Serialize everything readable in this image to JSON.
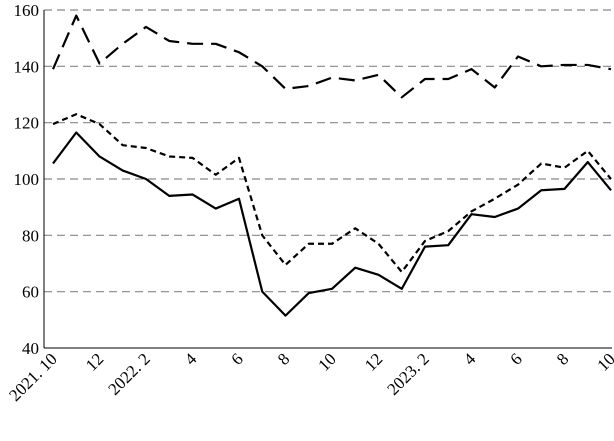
{
  "chart_data": {
    "type": "line",
    "categories": [
      "2021. 10",
      null,
      "12",
      null,
      "2022. 2",
      null,
      "4",
      null,
      "6",
      null,
      "8",
      null,
      "10",
      null,
      "12",
      null,
      "2023. 2",
      null,
      "4",
      null,
      "6",
      null,
      "8",
      null,
      "10"
    ],
    "series": [
      {
        "color": "#000000",
        "line_style": "dashed",
        "values": [
          139,
          158,
          141,
          148,
          154,
          149,
          148,
          148,
          145,
          140,
          132,
          133,
          136,
          135,
          137,
          129,
          135.5,
          135.5,
          139,
          132.5,
          143.5,
          140,
          140.5,
          140.5,
          139
        ]
      },
      {
        "color": "#000000",
        "line_style": "dotted",
        "values": [
          119.5,
          123,
          119.5,
          112,
          111,
          108,
          107.5,
          101.5,
          107.5,
          80,
          69.5,
          77,
          77,
          82.5,
          77,
          67,
          78,
          81.5,
          88.5,
          93,
          98,
          105.5,
          104,
          110,
          100
        ]
      },
      {
        "color": "#000000",
        "line_style": "solid",
        "values": [
          105.5,
          116.5,
          108,
          103,
          100,
          94,
          94.5,
          89.5,
          93,
          60,
          51.5,
          59.5,
          61,
          68.5,
          66,
          61,
          76,
          76.5,
          87.5,
          86.5,
          89.5,
          96,
          96.5,
          106,
          96
        ]
      }
    ],
    "ylim": [
      40,
      160
    ],
    "yticks": [
      40,
      60,
      80,
      100,
      120,
      140,
      160
    ],
    "grid": true
  }
}
